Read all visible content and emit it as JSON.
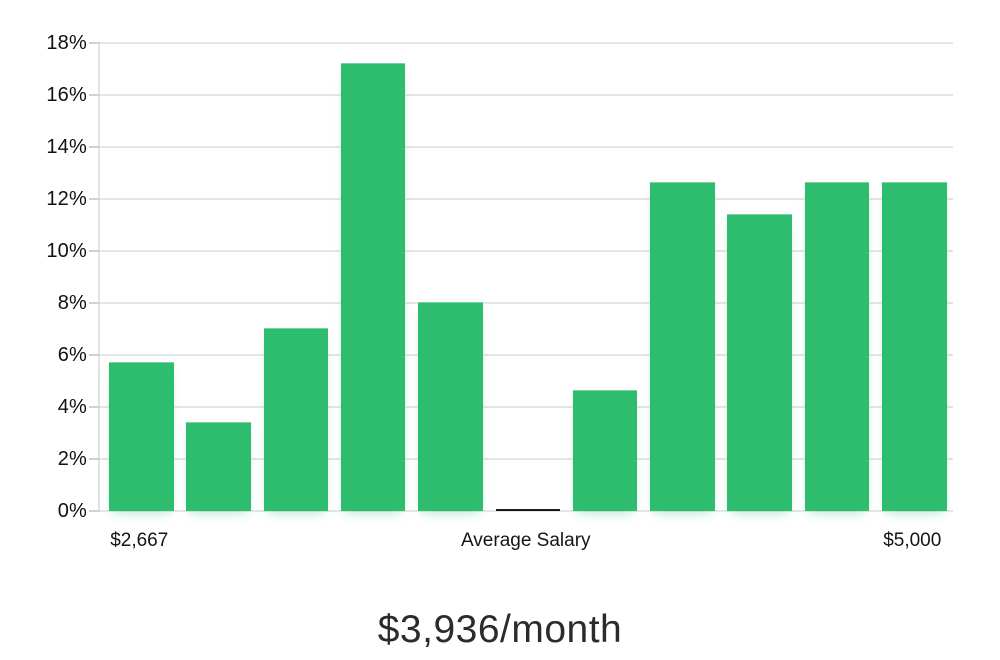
{
  "chart_data": {
    "type": "bar",
    "title": "$3,936/month",
    "y_ticks": [
      "18%",
      "16%",
      "14%",
      "12%",
      "10%",
      "8%",
      "6%",
      "4%",
      "2%",
      "0%"
    ],
    "ylim": [
      0,
      18
    ],
    "values": [
      5.7,
      3.4,
      7.0,
      17.2,
      8.0,
      0,
      4.6,
      12.6,
      11.4,
      12.6,
      12.6
    ],
    "x_labels": [
      {
        "text": "$2,667",
        "bar_index": 0
      },
      {
        "text": "Average Salary",
        "bar_index": 5
      },
      {
        "text": "$5,000",
        "bar_index": 10
      }
    ],
    "legend": null,
    "grid": "horizontal",
    "colors": {
      "bar": "#2ebd6e",
      "zero_bar": "#1a1a1a",
      "gridline": "#e6e6e6",
      "tick_label": "#111111",
      "title_text": "#2b2b2b"
    }
  }
}
